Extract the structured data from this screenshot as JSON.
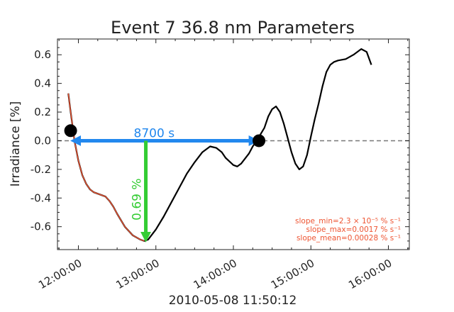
{
  "chart_data": {
    "type": "line",
    "title": "Event 7 36.8 nm Parameters",
    "xlabel": "2010-05-08 11:50:12",
    "ylabel": "Irradiance [%]",
    "x_unit": "hours",
    "xlim": [
      11.73,
      16.27
    ],
    "ylim": [
      -0.76,
      0.71
    ],
    "x_ticks": [
      12,
      13,
      14,
      15,
      16
    ],
    "x_tick_labels": [
      "12:00:00",
      "13:00:00",
      "14:00:00",
      "15:00:00",
      "16:00:00"
    ],
    "y_ticks": [
      -0.6,
      -0.4,
      -0.2,
      0.0,
      0.2,
      0.4,
      0.6
    ],
    "y_tick_labels": [
      "-0.6",
      "-0.4",
      "-0.2",
      "0.0",
      "0.2",
      "0.4",
      "0.6"
    ],
    "grid": false,
    "series": [
      {
        "color": "#000000",
        "points": [
          [
            11.87,
            0.33
          ],
          [
            11.9,
            0.2
          ],
          [
            11.95,
            0.0
          ],
          [
            12.0,
            -0.14
          ],
          [
            12.05,
            -0.24
          ],
          [
            12.1,
            -0.3
          ],
          [
            12.15,
            -0.34
          ],
          [
            12.2,
            -0.36
          ],
          [
            12.25,
            -0.37
          ],
          [
            12.3,
            -0.38
          ],
          [
            12.35,
            -0.39
          ],
          [
            12.4,
            -0.42
          ],
          [
            12.45,
            -0.46
          ],
          [
            12.5,
            -0.51
          ],
          [
            12.6,
            -0.6
          ],
          [
            12.7,
            -0.66
          ],
          [
            12.8,
            -0.69
          ],
          [
            12.85,
            -0.7
          ],
          [
            12.9,
            -0.69
          ],
          [
            13.0,
            -0.62
          ],
          [
            13.1,
            -0.53
          ],
          [
            13.2,
            -0.43
          ],
          [
            13.3,
            -0.33
          ],
          [
            13.4,
            -0.23
          ],
          [
            13.5,
            -0.15
          ],
          [
            13.6,
            -0.08
          ],
          [
            13.7,
            -0.04
          ],
          [
            13.78,
            -0.05
          ],
          [
            13.85,
            -0.08
          ],
          [
            13.9,
            -0.12
          ],
          [
            14.0,
            -0.17
          ],
          [
            14.05,
            -0.18
          ],
          [
            14.1,
            -0.16
          ],
          [
            14.2,
            -0.09
          ],
          [
            14.25,
            -0.04
          ],
          [
            14.3,
            0.0
          ],
          [
            14.4,
            0.09
          ],
          [
            14.45,
            0.17
          ],
          [
            14.5,
            0.22
          ],
          [
            14.55,
            0.24
          ],
          [
            14.6,
            0.2
          ],
          [
            14.65,
            0.12
          ],
          [
            14.7,
            0.02
          ],
          [
            14.75,
            -0.08
          ],
          [
            14.8,
            -0.16
          ],
          [
            14.85,
            -0.2
          ],
          [
            14.9,
            -0.18
          ],
          [
            14.95,
            -0.1
          ],
          [
            15.0,
            0.03
          ],
          [
            15.05,
            0.15
          ],
          [
            15.1,
            0.26
          ],
          [
            15.15,
            0.38
          ],
          [
            15.2,
            0.48
          ],
          [
            15.25,
            0.53
          ],
          [
            15.3,
            0.55
          ],
          [
            15.35,
            0.56
          ],
          [
            15.45,
            0.57
          ],
          [
            15.55,
            0.6
          ],
          [
            15.65,
            0.64
          ],
          [
            15.72,
            0.62
          ],
          [
            15.78,
            0.53
          ]
        ]
      },
      {
        "color": "#ee5533",
        "points": [
          [
            11.87,
            0.33
          ],
          [
            11.9,
            0.2
          ],
          [
            11.95,
            0.0
          ],
          [
            12.0,
            -0.14
          ],
          [
            12.05,
            -0.24
          ],
          [
            12.1,
            -0.3
          ],
          [
            12.15,
            -0.34
          ],
          [
            12.2,
            -0.36
          ],
          [
            12.25,
            -0.37
          ],
          [
            12.3,
            -0.38
          ],
          [
            12.35,
            -0.39
          ],
          [
            12.4,
            -0.42
          ],
          [
            12.45,
            -0.46
          ],
          [
            12.5,
            -0.51
          ],
          [
            12.6,
            -0.6
          ],
          [
            12.7,
            -0.66
          ],
          [
            12.8,
            -0.69
          ],
          [
            12.85,
            -0.7
          ]
        ]
      }
    ],
    "reference_line": {
      "y": 0.0,
      "style": "dashed",
      "color": "#777777"
    },
    "markers": [
      {
        "x": 11.9,
        "y": 0.07,
        "color": "#000000"
      },
      {
        "x": 14.33,
        "y": 0.0,
        "color": "#000000"
      }
    ],
    "duration_arrow": {
      "x_start": 11.95,
      "x_end": 14.28,
      "y": 0.0,
      "label": "8700 s",
      "color": "#2288ee"
    },
    "depth_arrow": {
      "x": 12.87,
      "y_start": 0.0,
      "y_end": -0.7,
      "label": "0.69 %",
      "color": "#33cc33"
    },
    "annotations": [
      "slope_min=2.3 × 10⁻⁵ % s⁻¹",
      "slope_max=0.0017 % s⁻¹",
      "slope_mean=0.00028 % s⁻¹"
    ]
  }
}
